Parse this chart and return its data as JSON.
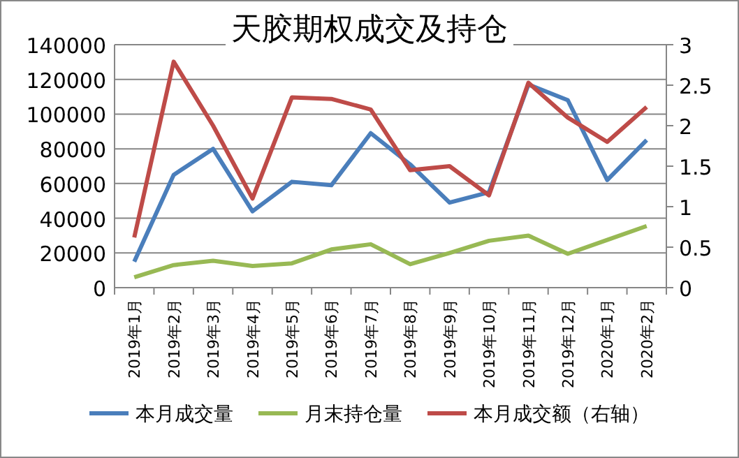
{
  "chart_data": {
    "type": "line",
    "title": "天胶期权成交及持仓",
    "categories": [
      "2019年1月",
      "2019年2月",
      "2019年3月",
      "2019年4月",
      "2019年5月",
      "2019年6月",
      "2019年7月",
      "2019年8月",
      "2019年9月",
      "2019年10月",
      "2019年11月",
      "2019年12月",
      "2020年1月",
      "2020年2月"
    ],
    "series": [
      {
        "name": "本月成交量",
        "color": "#4a7ebb",
        "values": [
          15000,
          65000,
          80000,
          44000,
          61000,
          59000,
          89000,
          71000,
          49000,
          55000,
          117000,
          108000,
          62000,
          85000
        ]
      },
      {
        "name": "月末持仓量",
        "color": "#98b954",
        "values": [
          6000,
          13000,
          15500,
          12500,
          14000,
          22000,
          25000,
          13500,
          20000,
          27000,
          30000,
          19500,
          27500,
          35500
        ]
      },
      {
        "name": "本月成交额（右轴）",
        "color": "#be4b48",
        "axis": "y2",
        "values": [
          0.62,
          2.79,
          2.0,
          1.1,
          2.35,
          2.33,
          2.2,
          1.45,
          1.5,
          1.14,
          2.53,
          2.1,
          1.8,
          2.23
        ]
      }
    ],
    "ylim": [
      0,
      140000
    ],
    "yticks": [
      0,
      20000,
      40000,
      60000,
      80000,
      100000,
      120000,
      140000
    ],
    "y2lim": [
      0,
      3
    ],
    "y2ticks": [
      0,
      0.5,
      1,
      1.5,
      2,
      2.5,
      3
    ],
    "grid": "y",
    "legend": "bottom",
    "marker": "none",
    "line_style": "solid"
  }
}
